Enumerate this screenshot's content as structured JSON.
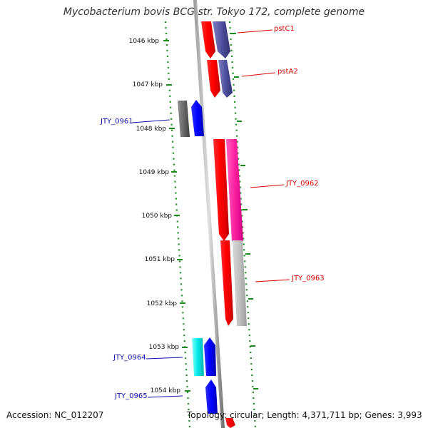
{
  "title": "Mycobacterium bovis BCG str. Tokyo 172, complete genome",
  "accession": "Accession: NC_012207",
  "topology": "Topology: circular; Length: 4,371,711 bp; Genes: 3,993",
  "ruler": [
    "1046 kbp",
    "1047 kbp",
    "1048 kbp",
    "1049 kbp",
    "1050 kbp",
    "1051 kbp",
    "1052 kbp",
    "1053 kbp",
    "1054 kbp"
  ],
  "genes": [
    {
      "label": "pstC1",
      "color": "red"
    },
    {
      "label": "pstA2",
      "color": "red"
    },
    {
      "label": "JTY_0961",
      "color": "blue"
    },
    {
      "label": "JTY_0962",
      "color": "red"
    },
    {
      "label": "JTY_0963",
      "color": "red"
    },
    {
      "label": "JTY_0964",
      "color": "blue"
    },
    {
      "label": "JTY_0965",
      "color": "blue"
    }
  ]
}
